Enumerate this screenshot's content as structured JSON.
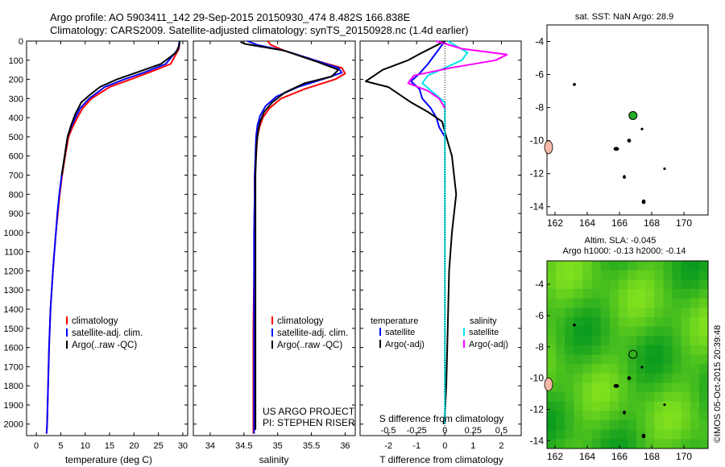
{
  "title": {
    "line1": "Argo profile: AO 5903411_142 29-Sep-2015 20150930_474 8.482S 166.838E",
    "line2": "Climatology: CARS2009. Satellite-adjusted climatology: synTS_20150928.nc (1.4d earlier)"
  },
  "colors": {
    "climatology": "#ff0000",
    "satellite": "#0000ff",
    "argo": "#000000",
    "sat_salinity": "#00e5ee",
    "argo_salinity": "#ff00ff",
    "land": "#f4b8a8",
    "sla_field": "#44dd22",
    "float_marker": "#22aa22"
  },
  "depth_ticks": [
    0,
    100,
    200,
    300,
    400,
    500,
    600,
    700,
    800,
    900,
    1000,
    1100,
    1200,
    1300,
    1400,
    1500,
    1600,
    1700,
    1800,
    1900,
    2000
  ],
  "footer": {
    "project": "US ARGO PROJECT",
    "pi": "PI: STEPHEN RISER"
  },
  "chart_data": [
    {
      "id": "temperature-profile",
      "type": "line",
      "xlabel": "temperature (deg C)",
      "xlim": [
        -2,
        31
      ],
      "ylim": [
        2060,
        0
      ],
      "xticks": [
        0,
        5,
        10,
        15,
        20,
        25,
        30
      ],
      "legend": [
        "climatology",
        "satellite-adj. clim.",
        "Argo(..raw -QC)"
      ],
      "series": [
        {
          "name": "climatology",
          "color": "#ff0000",
          "x": [
            29.3,
            29.2,
            27.5,
            23.5,
            19.3,
            15.0,
            11.3,
            9.5,
            8.4,
            7.4,
            6.6,
            5.9,
            5.3,
            4.8,
            4.4,
            4.0,
            3.7,
            3.4,
            2.9,
            2.6,
            2.4,
            2.3,
            2.2,
            2.1
          ],
          "y": [
            0,
            40,
            120,
            160,
            200,
            240,
            300,
            350,
            400,
            450,
            500,
            600,
            700,
            800,
            900,
            1000,
            1100,
            1200,
            1400,
            1600,
            1800,
            1900,
            2000,
            2050
          ]
        },
        {
          "name": "satellite-adj. clim.",
          "color": "#0000ff",
          "x": [
            29.3,
            29.1,
            26.5,
            22.5,
            18.0,
            14.0,
            10.8,
            9.0,
            8.0,
            7.1,
            6.4,
            5.8,
            5.2,
            4.7,
            4.3,
            4.0,
            3.7,
            3.4,
            2.9,
            2.6,
            2.4,
            2.3,
            2.2,
            2.1
          ],
          "y": [
            0,
            40,
            120,
            160,
            200,
            240,
            300,
            350,
            400,
            450,
            500,
            600,
            700,
            800,
            900,
            1000,
            1100,
            1200,
            1400,
            1600,
            1800,
            1900,
            2000,
            2050
          ]
        },
        {
          "name": "Argo(..raw -QC)",
          "color": "#000000",
          "x": [
            29.4,
            29.3,
            28.6,
            25.5,
            21.0,
            16.5,
            13.0,
            11.0,
            9.2,
            8.0,
            7.1,
            6.4,
            5.8,
            5.2
          ],
          "y": [
            0,
            20,
            60,
            120,
            160,
            200,
            240,
            280,
            320,
            380,
            440,
            500,
            600,
            700
          ]
        }
      ]
    },
    {
      "id": "salinity-profile",
      "type": "line",
      "xlabel": "salinity",
      "xlim": [
        33.75,
        36.15
      ],
      "ylim": [
        2060,
        0
      ],
      "xticks": [
        34,
        34.5,
        35,
        35.5,
        36
      ],
      "legend": [
        "climatology",
        "satellite-adj. clim.",
        "Argo(..raw -QC)"
      ],
      "series": [
        {
          "name": "climatology",
          "color": "#ff0000",
          "x": [
            34.85,
            34.9,
            35.1,
            35.55,
            35.95,
            36.0,
            35.85,
            35.4,
            35.05,
            34.88,
            34.78,
            34.73,
            34.7,
            34.68,
            34.66,
            34.66,
            34.65,
            34.65,
            34.64,
            34.64,
            34.64,
            34.64
          ],
          "y": [
            0,
            20,
            50,
            100,
            140,
            170,
            200,
            250,
            300,
            350,
            400,
            450,
            500,
            600,
            700,
            800,
            1000,
            1200,
            1500,
            1800,
            2000,
            2050
          ]
        },
        {
          "name": "satellite-adj. clim.",
          "color": "#0000ff",
          "x": [
            34.55,
            34.7,
            35.1,
            35.55,
            35.9,
            35.95,
            35.75,
            35.3,
            34.98,
            34.82,
            34.74,
            34.7,
            34.68,
            34.67,
            34.66,
            34.66,
            34.65,
            34.65,
            34.65,
            34.65,
            34.65,
            34.65
          ],
          "y": [
            0,
            20,
            50,
            100,
            140,
            165,
            190,
            240,
            290,
            340,
            390,
            440,
            500,
            600,
            700,
            800,
            1000,
            1200,
            1500,
            1800,
            2000,
            2050
          ]
        },
        {
          "name": "Argo(..raw -QC)",
          "color": "#000000",
          "x": [
            34.45,
            34.52,
            35.1,
            35.6,
            35.9,
            35.8,
            35.4,
            35.1,
            34.92,
            34.8,
            34.74,
            34.71,
            34.69,
            34.68,
            34.67,
            34.67,
            34.67,
            34.67,
            34.67,
            34.67,
            34.67
          ],
          "y": [
            5,
            15,
            50,
            110,
            150,
            185,
            220,
            270,
            320,
            370,
            420,
            470,
            530,
            600,
            700,
            800,
            1000,
            1200,
            1500,
            1800,
            2030
          ]
        }
      ]
    },
    {
      "id": "difference-profile",
      "type": "line",
      "xlabel": "T difference from climatology",
      "xlabel_top": "S difference from climatology",
      "xlim": [
        -3.0,
        2.7
      ],
      "ylim": [
        2060,
        0
      ],
      "xticks": [
        -2,
        -1,
        0,
        1,
        2
      ],
      "s_ticks": [
        "-0.5",
        "-0.25",
        "0",
        "0.25",
        "0.5"
      ],
      "legend": {
        "temperature": "temperature",
        "salinity": "salinity",
        "t_satellite": "satellite",
        "t_argo": "Argo(-adj)",
        "s_satellite": "satellite",
        "s_argo": "Argo(-adj)"
      },
      "series": [
        {
          "name": "temperature satellite",
          "color": "#0000ff",
          "x": [
            0,
            -0.3,
            -0.6,
            -0.9,
            -1.2,
            -0.9,
            -0.8,
            -0.5,
            -0.3,
            -0.2,
            0
          ],
          "y": [
            0,
            60,
            120,
            170,
            210,
            250,
            300,
            350,
            400,
            450,
            500
          ]
        },
        {
          "name": "temperature Argo(-adj)",
          "color": "#000000",
          "x": [
            0,
            -0.8,
            -1.3,
            -2.2,
            -2.8,
            -2.0,
            -1.6,
            -1.2,
            -0.6,
            -0.1,
            0.05,
            0.25,
            0.4,
            0.25,
            0.15,
            0.1,
            0.05,
            0.0,
            -0.05
          ],
          "y": [
            0,
            60,
            100,
            150,
            210,
            240,
            280,
            320,
            370,
            420,
            500,
            600,
            800,
            1000,
            1200,
            1500,
            1800,
            1950,
            2000
          ]
        },
        {
          "name": "salinity satellite",
          "color": "#00e5ee",
          "x": [
            0.1,
            0.8,
            0.6,
            0.0,
            -0.6,
            -0.8,
            -0.4,
            0,
            0,
            0,
            0
          ],
          "y": [
            0,
            60,
            100,
            140,
            180,
            220,
            270,
            320,
            600,
            1200,
            2000
          ]
        },
        {
          "name": "salinity Argo(-adj)",
          "color": "#ff00ff",
          "x": [
            -0.3,
            0.6,
            2.2,
            1.8,
            0.2,
            -1.1,
            -1.3,
            -0.6,
            -0.2,
            0
          ],
          "y": [
            0,
            40,
            70,
            100,
            140,
            180,
            220,
            260,
            300,
            350
          ]
        }
      ]
    },
    {
      "id": "sst-map",
      "type": "scatter",
      "title": "sat. SST: NaN Argo: 28.9",
      "xlim": [
        161.5,
        171.5
      ],
      "ylim": [
        -14.5,
        -3
      ],
      "xticks": [
        162,
        164,
        166,
        168,
        170
      ],
      "yticks": [
        -4,
        -6,
        -8,
        -10,
        -12,
        -14
      ],
      "float_position": [
        166.84,
        -8.48
      ]
    },
    {
      "id": "sla-map",
      "type": "heatmap",
      "title_line1": "Altim. SLA: -0.045",
      "title_line2": "Argo h1000: -0.13 h2000: -0.14",
      "xlim": [
        161.5,
        171.5
      ],
      "ylim": [
        -14.5,
        -2.5
      ],
      "xticks": [
        162,
        164,
        166,
        168,
        170
      ],
      "yticks": [
        -4,
        -6,
        -8,
        -10,
        -12,
        -14
      ],
      "float_position": [
        166.84,
        -8.48
      ]
    }
  ],
  "credit": "©IMOS 05-Oct-2015 20:39:48"
}
